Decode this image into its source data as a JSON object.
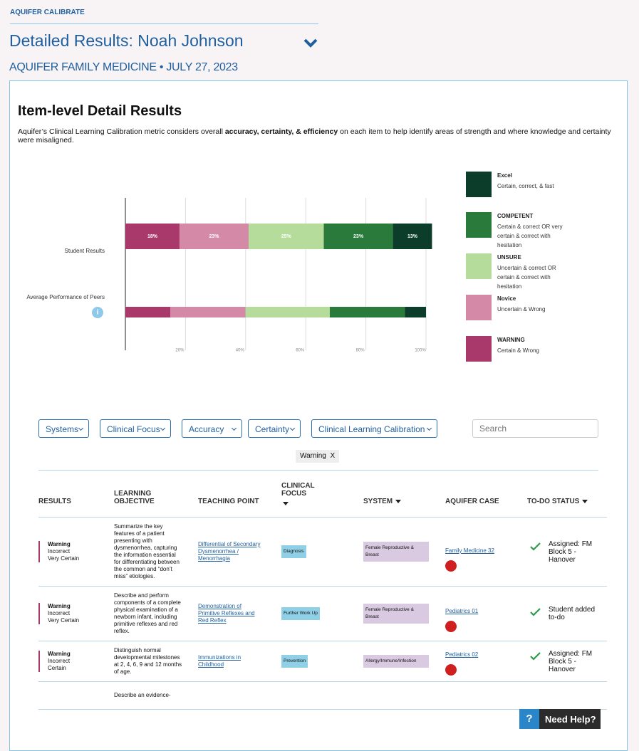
{
  "header": {
    "app": "AQUIFER CALIBRATE",
    "title": "Detailed Results: Noah Johnson",
    "subtitle": "AQUIFER FAMILY MEDICINE • JULY 27, 2023"
  },
  "intro": {
    "heading": "Item-level Detail Results",
    "text_before": "Aquifer’s Clinical Learning Calibration metric considers overall ",
    "text_bold": "accuracy, certainty, & efficiency",
    "text_after": " on each item to help identify areas of strength and where knowledge and certainty were misaligned."
  },
  "chart_data": {
    "type": "stacked-bar-horizontal",
    "categories": [
      "Student Results",
      "Average Performance of Peers"
    ],
    "series": [
      {
        "name": "WARNING",
        "description": "Certain & Wrong",
        "color": "#a8396a",
        "values": [
          18,
          15
        ],
        "value_labels": [
          "18%",
          null
        ]
      },
      {
        "name": "Novice",
        "description": "Uncertain & Wrong",
        "color": "#d48aa7",
        "values": [
          23,
          25
        ],
        "value_labels": [
          "23%",
          null
        ]
      },
      {
        "name": "UNSURE",
        "description": "Uncertain & correct OR certain & correct with hesitation",
        "color": "#b5dc9b",
        "values": [
          25,
          28
        ],
        "value_labels": [
          "25%",
          null
        ]
      },
      {
        "name": "COMPETENT",
        "description": "Certain & correct OR very certain & correct with hesitation",
        "color": "#2a7a3b",
        "values": [
          23,
          25
        ],
        "value_labels": [
          "23%",
          null
        ]
      },
      {
        "name": "Excel",
        "description": "Certain, correct, & fast",
        "color": "#0b3d2a",
        "values": [
          13,
          7
        ],
        "value_labels": [
          "13%",
          null
        ]
      }
    ],
    "xlim": [
      0,
      100
    ],
    "xticks": [
      {
        "value": 20,
        "label": "20%"
      },
      {
        "value": 40,
        "label": "40%"
      },
      {
        "value": 60,
        "label": "60%"
      },
      {
        "value": 80,
        "label": "80%"
      },
      {
        "value": 100,
        "label": "100%"
      }
    ],
    "grid": true
  },
  "filters": {
    "dropdowns": [
      "Systems",
      "Clinical Focus",
      "Accuracy",
      "Certainty",
      "Clinical Learning Calibration"
    ],
    "search": "Search",
    "tag": "Warning",
    "tag_remove": "X"
  },
  "table": {
    "headers": [
      "RESULTS",
      "LEARNING OBJECTIVE",
      "TEACHING POINT",
      "CLINICAL FOCUS",
      "SYSTEM",
      "AQUIFER CASE",
      "TO-DO STATUS"
    ],
    "rows": [
      {
        "result": "Warning",
        "accuracy": "Incorrect",
        "certainty": "Very Certain",
        "objective": "Summarize the key features of a patient presenting with dysmenorrhea, capturing the information essential for differentiating between the common and “don’t miss” etiologies.",
        "teaching_point": "Differential of Secondary Dysmenorrhea / Menorrhagia",
        "focus": "Diagnosis",
        "system": "Female Reproductive & Breast",
        "case": "Family Medicine 32",
        "status": "Assigned: FM Block 5 - Hanover"
      },
      {
        "result": "Warning",
        "accuracy": "Incorrect",
        "certainty": "Very Certain",
        "objective": "Describe and perform components of a complete physical examination of a newborn infant, including primitive reflexes and red reflex.",
        "teaching_point": "Demonstration of Primitive Reflexes and Red Reflex",
        "focus": "Further Work Up",
        "system": "Female Reproductive & Breast",
        "case": "Pediatrics 01",
        "status": "Student added to-do"
      },
      {
        "result": "Warning",
        "accuracy": "Incorrect",
        "certainty": "Certain",
        "objective": "Distinguish normal developmental milestones at 2, 4, 6, 9 and 12 months of age.",
        "teaching_point": "Immunizations in Childhood",
        "focus": "Prevention",
        "system": "Allergy/Immune/Infection",
        "case": "Pediatrics 02",
        "status": "Assigned: FM Block 5 - Hanover"
      },
      {
        "objective": "Describe an evidence-"
      }
    ]
  },
  "help": {
    "icon": "?",
    "label": "Need Help?"
  }
}
